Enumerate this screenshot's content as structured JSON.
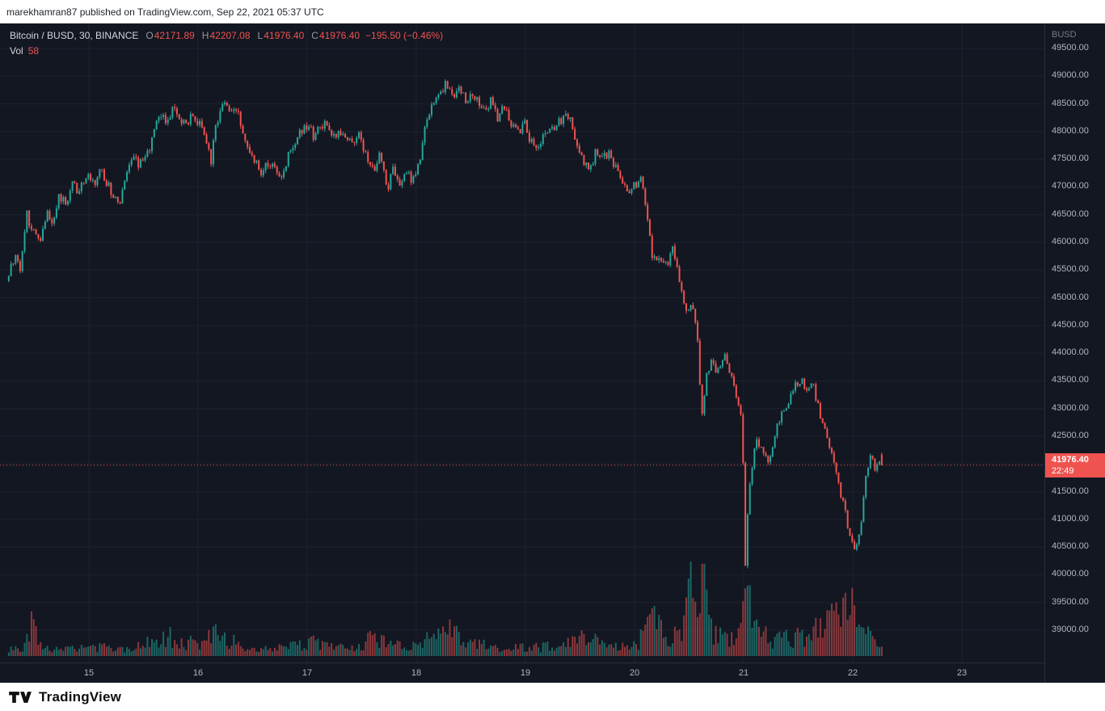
{
  "top_bar": {
    "publish_text": "marekhamran87 published on TradingView.com, Sep 22, 2021 05:37 UTC"
  },
  "legend": {
    "title": "Bitcoin / BUSD, 30, BINANCE",
    "fields": [
      {
        "label": "O",
        "value": "42171.89"
      },
      {
        "label": "H",
        "value": "42207.08"
      },
      {
        "label": "L",
        "value": "41976.40"
      },
      {
        "label": "C",
        "value": "41976.40"
      }
    ],
    "change": "−195.50 (−0.46%)",
    "vol_label": "Vol",
    "vol_value": "58"
  },
  "price_axis": {
    "currency": "BUSD",
    "ticks": [
      "49500.00",
      "49000.00",
      "48500.00",
      "48000.00",
      "47500.00",
      "47000.00",
      "46500.00",
      "46000.00",
      "45500.00",
      "45000.00",
      "44500.00",
      "44000.00",
      "43500.00",
      "43000.00",
      "42500.00",
      "41500.00",
      "41000.00",
      "40500.00",
      "40000.00",
      "39500.00",
      "39000.00"
    ],
    "last_price": "41976.40",
    "countdown": "22:49"
  },
  "time_axis": {
    "labels": [
      "15",
      "16",
      "17",
      "18",
      "19",
      "20",
      "21",
      "22",
      "23"
    ]
  },
  "footer": {
    "brand": "TradingView"
  },
  "chart_data": {
    "type": "candlestick",
    "title": "Bitcoin / BUSD, 30, BINANCE",
    "interval_minutes": 30,
    "x_axis": {
      "unit": "day of September 2021",
      "ticks": [
        15,
        16,
        17,
        18,
        19,
        20,
        21,
        22,
        23
      ],
      "domain": [
        14.255,
        23.75
      ]
    },
    "y_axis": {
      "label": "BUSD",
      "ticks": [
        39000,
        39500,
        40000,
        40500,
        41000,
        41500,
        42000,
        42500,
        43000,
        43500,
        44000,
        44500,
        45000,
        45500,
        46000,
        46500,
        47000,
        47500,
        48000,
        48500,
        49000,
        49500
      ],
      "domain": [
        38405,
        49952
      ]
    },
    "last": {
      "open": 42171.89,
      "high": 42207.08,
      "low": 41976.4,
      "close": 41976.4,
      "change": -195.5,
      "change_pct": -0.46
    },
    "last_volume": 58,
    "colors": {
      "up": "#26a69a",
      "down": "#ef5350",
      "last_price_line": "#ef5350"
    },
    "price_path": [
      [
        14.255,
        45300
      ],
      [
        14.3,
        45600
      ],
      [
        14.34,
        45800
      ],
      [
        14.38,
        45550
      ],
      [
        14.44,
        46500
      ],
      [
        14.5,
        46200
      ],
      [
        14.56,
        46050
      ],
      [
        14.62,
        46550
      ],
      [
        14.68,
        46400
      ],
      [
        14.74,
        46850
      ],
      [
        14.8,
        46650
      ],
      [
        14.86,
        47100
      ],
      [
        14.92,
        46900
      ],
      [
        15.0,
        47250
      ],
      [
        15.06,
        47050
      ],
      [
        15.12,
        47300
      ],
      [
        15.18,
        47050
      ],
      [
        15.24,
        46850
      ],
      [
        15.3,
        46700
      ],
      [
        15.36,
        47250
      ],
      [
        15.42,
        47550
      ],
      [
        15.48,
        47400
      ],
      [
        15.54,
        47600
      ],
      [
        15.6,
        47900
      ],
      [
        15.66,
        48300
      ],
      [
        15.72,
        48150
      ],
      [
        15.78,
        48400
      ],
      [
        15.84,
        48200
      ],
      [
        15.9,
        48100
      ],
      [
        15.96,
        48350
      ],
      [
        16.02,
        48150
      ],
      [
        16.08,
        47900
      ],
      [
        16.13,
        47450
      ],
      [
        16.18,
        48200
      ],
      [
        16.24,
        48500
      ],
      [
        16.3,
        48350
      ],
      [
        16.36,
        48400
      ],
      [
        16.42,
        48000
      ],
      [
        16.48,
        47650
      ],
      [
        16.54,
        47500
      ],
      [
        16.6,
        47250
      ],
      [
        16.66,
        47450
      ],
      [
        16.72,
        47300
      ],
      [
        16.78,
        47150
      ],
      [
        16.84,
        47650
      ],
      [
        16.9,
        47850
      ],
      [
        16.96,
        48000
      ],
      [
        17.02,
        48100
      ],
      [
        17.08,
        47900
      ],
      [
        17.14,
        48150
      ],
      [
        17.2,
        48050
      ],
      [
        17.26,
        47850
      ],
      [
        17.32,
        48000
      ],
      [
        17.38,
        47850
      ],
      [
        17.44,
        47750
      ],
      [
        17.5,
        47950
      ],
      [
        17.56,
        47450
      ],
      [
        17.62,
        47300
      ],
      [
        17.68,
        47600
      ],
      [
        17.74,
        46950
      ],
      [
        17.8,
        47300
      ],
      [
        17.86,
        47000
      ],
      [
        17.92,
        47200
      ],
      [
        17.98,
        47150
      ],
      [
        18.04,
        47400
      ],
      [
        18.1,
        48150
      ],
      [
        18.16,
        48550
      ],
      [
        18.22,
        48700
      ],
      [
        18.28,
        48850
      ],
      [
        18.34,
        48650
      ],
      [
        18.4,
        48800
      ],
      [
        18.46,
        48550
      ],
      [
        18.52,
        48650
      ],
      [
        18.58,
        48500
      ],
      [
        18.64,
        48400
      ],
      [
        18.7,
        48550
      ],
      [
        18.76,
        48250
      ],
      [
        18.82,
        48450
      ],
      [
        18.88,
        48100
      ],
      [
        18.94,
        48000
      ],
      [
        19.0,
        48150
      ],
      [
        19.06,
        47800
      ],
      [
        19.12,
        47700
      ],
      [
        19.18,
        47950
      ],
      [
        19.24,
        48050
      ],
      [
        19.3,
        48100
      ],
      [
        19.36,
        48250
      ],
      [
        19.42,
        48200
      ],
      [
        19.48,
        47850
      ],
      [
        19.54,
        47400
      ],
      [
        19.6,
        47300
      ],
      [
        19.66,
        47650
      ],
      [
        19.72,
        47500
      ],
      [
        19.78,
        47600
      ],
      [
        19.84,
        47350
      ],
      [
        19.9,
        47150
      ],
      [
        19.96,
        46950
      ],
      [
        20.02,
        47050
      ],
      [
        20.08,
        47150
      ],
      [
        20.13,
        46400
      ],
      [
        20.18,
        45650
      ],
      [
        20.24,
        45800
      ],
      [
        20.3,
        45550
      ],
      [
        20.36,
        45850
      ],
      [
        20.42,
        45300
      ],
      [
        20.48,
        44750
      ],
      [
        20.54,
        44900
      ],
      [
        20.6,
        44100
      ],
      [
        20.62,
        42750
      ],
      [
        20.67,
        43650
      ],
      [
        20.72,
        43850
      ],
      [
        20.78,
        43650
      ],
      [
        20.84,
        43950
      ],
      [
        20.9,
        43600
      ],
      [
        20.96,
        43100
      ],
      [
        21.0,
        42800
      ],
      [
        21.02,
        39980
      ],
      [
        21.06,
        41600
      ],
      [
        21.12,
        42450
      ],
      [
        21.18,
        42250
      ],
      [
        21.24,
        42000
      ],
      [
        21.3,
        42550
      ],
      [
        21.36,
        42900
      ],
      [
        21.42,
        43150
      ],
      [
        21.48,
        43400
      ],
      [
        21.54,
        43500
      ],
      [
        21.6,
        43300
      ],
      [
        21.64,
        43450
      ],
      [
        21.7,
        42950
      ],
      [
        21.76,
        42550
      ],
      [
        21.82,
        42250
      ],
      [
        21.88,
        41650
      ],
      [
        21.94,
        41150
      ],
      [
        21.98,
        40700
      ],
      [
        22.03,
        40350
      ],
      [
        22.06,
        40600
      ],
      [
        22.1,
        41150
      ],
      [
        22.14,
        41900
      ],
      [
        22.17,
        42200
      ],
      [
        22.21,
        41950
      ],
      [
        22.26,
        41976.4
      ]
    ],
    "volume_profile": [
      [
        14.255,
        0.1
      ],
      [
        14.4,
        0.14
      ],
      [
        14.48,
        0.48
      ],
      [
        14.55,
        0.16
      ],
      [
        14.7,
        0.1
      ],
      [
        14.9,
        0.12
      ],
      [
        15.05,
        0.12
      ],
      [
        15.25,
        0.1
      ],
      [
        15.45,
        0.13
      ],
      [
        15.62,
        0.22
      ],
      [
        15.72,
        0.28
      ],
      [
        15.85,
        0.16
      ],
      [
        16.05,
        0.22
      ],
      [
        16.15,
        0.3
      ],
      [
        16.3,
        0.2
      ],
      [
        16.5,
        0.13
      ],
      [
        16.7,
        0.1
      ],
      [
        16.9,
        0.14
      ],
      [
        17.05,
        0.18
      ],
      [
        17.25,
        0.11
      ],
      [
        17.45,
        0.12
      ],
      [
        17.58,
        0.24
      ],
      [
        17.75,
        0.18
      ],
      [
        17.95,
        0.13
      ],
      [
        18.1,
        0.24
      ],
      [
        18.3,
        0.36
      ],
      [
        18.45,
        0.2
      ],
      [
        18.65,
        0.13
      ],
      [
        18.85,
        0.12
      ],
      [
        19.05,
        0.11
      ],
      [
        19.25,
        0.14
      ],
      [
        19.4,
        0.22
      ],
      [
        19.52,
        0.34
      ],
      [
        19.65,
        0.18
      ],
      [
        19.85,
        0.12
      ],
      [
        20.0,
        0.13
      ],
      [
        20.1,
        0.4
      ],
      [
        20.16,
        0.72
      ],
      [
        20.25,
        0.35
      ],
      [
        20.35,
        0.25
      ],
      [
        20.45,
        0.5
      ],
      [
        20.52,
        1.0
      ],
      [
        20.58,
        0.72
      ],
      [
        20.63,
        0.88
      ],
      [
        20.7,
        0.38
      ],
      [
        20.82,
        0.24
      ],
      [
        20.92,
        0.3
      ],
      [
        21.0,
        0.55
      ],
      [
        21.03,
        0.8
      ],
      [
        21.08,
        0.5
      ],
      [
        21.15,
        0.32
      ],
      [
        21.25,
        0.22
      ],
      [
        21.35,
        0.24
      ],
      [
        21.45,
        0.28
      ],
      [
        21.55,
        0.3
      ],
      [
        21.65,
        0.34
      ],
      [
        21.75,
        0.42
      ],
      [
        21.85,
        0.55
      ],
      [
        21.92,
        0.62
      ],
      [
        21.97,
        0.55
      ],
      [
        22.02,
        0.92
      ],
      [
        22.07,
        0.48
      ],
      [
        22.12,
        0.3
      ],
      [
        22.18,
        0.2
      ],
      [
        22.26,
        0.1
      ]
    ]
  }
}
